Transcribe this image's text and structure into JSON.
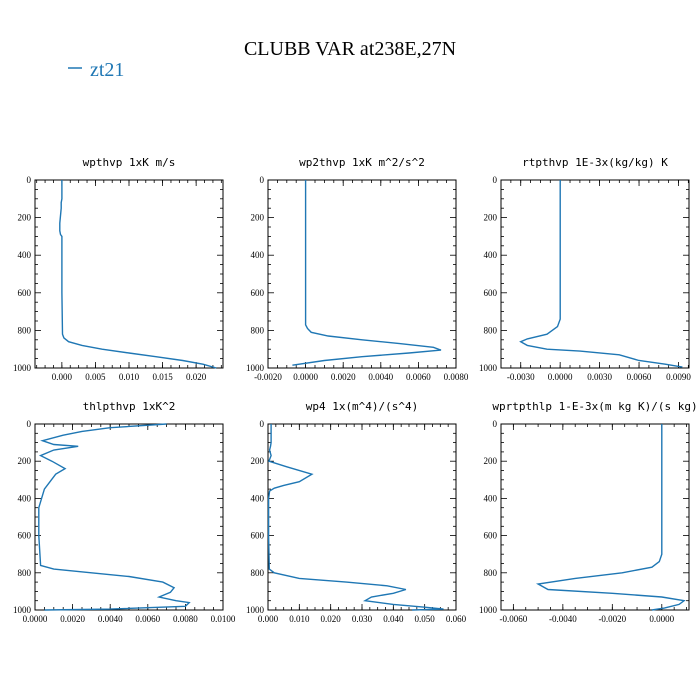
{
  "figure": {
    "title": "CLUBB VAR at238E,27N",
    "legend_label": "zt21",
    "line_color": "#1f77b4"
  },
  "chart_data": [
    {
      "type": "line",
      "title": "wpthvp  1xK m/s",
      "xticks": [
        "0.000",
        "0.005",
        "0.010",
        "0.015",
        "0.020"
      ],
      "xtick_values": [
        0,
        0.005,
        0.01,
        0.015,
        0.02
      ],
      "yticks": [
        "0",
        "200",
        "400",
        "600",
        "800",
        "1000"
      ],
      "xlim": [
        -0.004,
        0.024
      ],
      "ylim": [
        1000,
        0
      ],
      "series": [
        {
          "x": [
            0.0,
            0.0,
            -0.0001,
            -0.0001,
            -0.0003,
            -0.0003,
            -0.0002,
            0.0,
            0.0,
            0.0,
            0.0001,
            0.0003,
            0.001,
            0.003,
            0.006,
            0.01,
            0.014,
            0.018,
            0.021,
            0.023
          ],
          "y": [
            0,
            100,
            120,
            150,
            230,
            270,
            290,
            300,
            400,
            600,
            820,
            840,
            860,
            880,
            900,
            920,
            940,
            960,
            980,
            1000
          ]
        }
      ]
    },
    {
      "type": "line",
      "title": "wp2thvp  1xK m^2/s^2",
      "xticks": [
        "-0.0020",
        "0.0000",
        "0.0020",
        "0.0040",
        "0.0060",
        "0.0080"
      ],
      "xtick_values": [
        -0.002,
        0,
        0.002,
        0.004,
        0.006,
        0.008
      ],
      "yticks": [
        "0",
        "200",
        "400",
        "600",
        "800",
        "1000"
      ],
      "xlim": [
        -0.002,
        0.008
      ],
      "ylim": [
        1000,
        0
      ],
      "series": [
        {
          "x": [
            0.0,
            0.0,
            0.0,
            0.0001,
            0.0003,
            0.0012,
            0.003,
            0.005,
            0.0068,
            0.0072,
            0.0055,
            0.003,
            0.001,
            -0.0007
          ],
          "y": [
            0,
            400,
            770,
            790,
            810,
            830,
            850,
            870,
            890,
            905,
            920,
            940,
            960,
            985
          ]
        }
      ]
    },
    {
      "type": "line",
      "title": "rtpthvp  1E-3x(kg/kg) K",
      "xticks": [
        "-0.0030",
        "0.0000",
        "0.0030",
        "0.0060",
        "0.0090"
      ],
      "xtick_values": [
        -0.003,
        0,
        0.003,
        0.006,
        0.009
      ],
      "yticks": [
        "0",
        "200",
        "400",
        "600",
        "800",
        "1000"
      ],
      "xlim": [
        -0.0045,
        0.0098
      ],
      "ylim": [
        1000,
        0
      ],
      "series": [
        {
          "x": [
            0.0,
            0.0,
            0.0,
            -0.0002,
            -0.001,
            -0.0025,
            -0.003,
            -0.0025,
            -0.001,
            0.0015,
            0.0045,
            0.006,
            0.008,
            0.0093
          ],
          "y": [
            0,
            400,
            740,
            780,
            820,
            845,
            860,
            880,
            900,
            910,
            930,
            960,
            980,
            995
          ]
        }
      ]
    },
    {
      "type": "line",
      "title": "thlpthvp  1xK^2",
      "xticks": [
        "0.0000",
        "0.0020",
        "0.0040",
        "0.0060",
        "0.0080",
        "0.0100"
      ],
      "xtick_values": [
        0,
        0.002,
        0.004,
        0.006,
        0.008,
        0.01
      ],
      "yticks": [
        "0",
        "200",
        "400",
        "600",
        "800",
        "1000"
      ],
      "xlim": [
        0,
        0.01
      ],
      "ylim": [
        1000,
        0
      ],
      "series": [
        {
          "x": [
            0.007,
            0.004,
            0.0025,
            0.0015,
            0.0004,
            0.001,
            0.0023,
            0.001,
            0.0003,
            0.0009,
            0.0016,
            0.0011,
            0.0005,
            0.0002,
            0.0002,
            0.0003,
            0.001,
            0.003,
            0.005,
            0.0068,
            0.0074,
            0.0072,
            0.0066,
            0.0075,
            0.0082,
            0.008,
            0.004,
            0.0005
          ],
          "y": [
            0,
            20,
            40,
            60,
            90,
            110,
            120,
            140,
            170,
            200,
            240,
            270,
            350,
            450,
            600,
            760,
            780,
            800,
            820,
            850,
            880,
            905,
            930,
            950,
            960,
            980,
            995,
            1000
          ]
        }
      ]
    },
    {
      "type": "line",
      "title": "wp4  1x(m^4)/(s^4)",
      "xticks": [
        "0.000",
        "0.010",
        "0.020",
        "0.030",
        "0.040",
        "0.050",
        "0.060"
      ],
      "xtick_values": [
        0,
        0.01,
        0.02,
        0.03,
        0.04,
        0.05,
        0.06
      ],
      "yticks": [
        "0",
        "200",
        "400",
        "600",
        "800",
        "1000"
      ],
      "xlim": [
        0,
        0.06
      ],
      "ylim": [
        1000,
        0
      ],
      "series": [
        {
          "x": [
            0.001,
            0.001,
            0.0008,
            0.0005,
            0.001,
            0.0003,
            0.006,
            0.014,
            0.01,
            0.005,
            0.002,
            0.0005,
            0.0002,
            0.0002,
            0.0004,
            0.002,
            0.01,
            0.025,
            0.038,
            0.044,
            0.04,
            0.033,
            0.031,
            0.04,
            0.05,
            0.056,
            0.046
          ],
          "y": [
            0,
            100,
            120,
            140,
            170,
            200,
            230,
            270,
            310,
            330,
            345,
            360,
            400,
            600,
            780,
            800,
            830,
            850,
            870,
            890,
            910,
            930,
            950,
            970,
            985,
            995,
            1000
          ]
        }
      ]
    },
    {
      "type": "line",
      "title": "wprtpthlp  1-E-3x(m kg K)/(s kg)",
      "xticks": [
        "-0.0060",
        "-0.0040",
        "-0.0020",
        "0.0000"
      ],
      "xtick_values": [
        -0.006,
        -0.004,
        -0.002,
        0
      ],
      "yticks": [
        "0",
        "200",
        "400",
        "600",
        "800",
        "1000"
      ],
      "xlim": [
        -0.0065,
        0.0011
      ],
      "ylim": [
        1000,
        0
      ],
      "series": [
        {
          "x": [
            0.0,
            0.0,
            0.0,
            -0.0001,
            -0.0004,
            -0.0016,
            -0.0035,
            -0.005,
            -0.0046,
            -0.002,
            0.0,
            0.0009,
            0.0007,
            0.0001,
            -0.0004
          ],
          "y": [
            0,
            400,
            700,
            740,
            770,
            800,
            830,
            860,
            890,
            910,
            930,
            950,
            970,
            990,
            1000
          ]
        }
      ]
    }
  ]
}
